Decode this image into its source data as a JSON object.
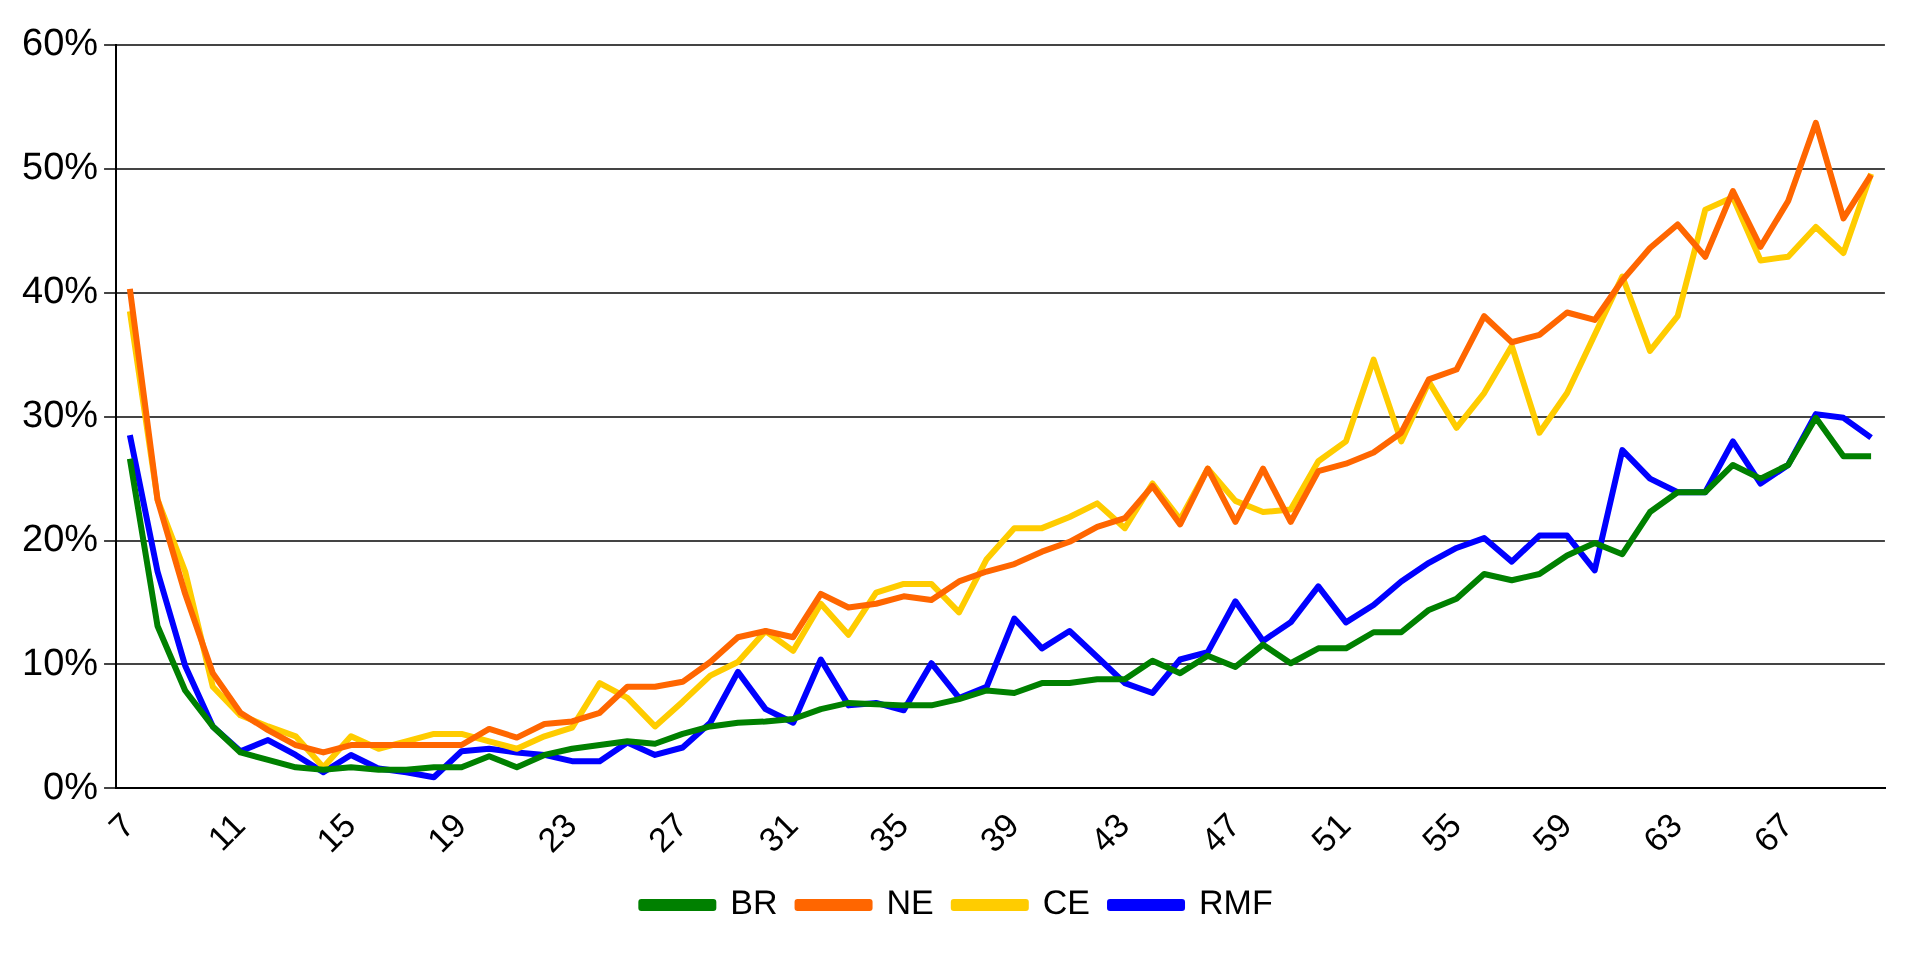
{
  "chart_data": {
    "type": "line",
    "categories": [
      "7",
      null,
      null,
      null,
      "11",
      null,
      null,
      null,
      "15",
      null,
      null,
      null,
      "19",
      null,
      null,
      null,
      "23",
      null,
      null,
      null,
      "27",
      null,
      null,
      null,
      "31",
      null,
      null,
      null,
      "35",
      null,
      null,
      null,
      "39",
      null,
      null,
      null,
      "43",
      null,
      null,
      null,
      "47",
      null,
      null,
      null,
      "51",
      null,
      null,
      null,
      "55",
      null,
      null,
      null,
      "59",
      null,
      null,
      null,
      "63",
      null,
      null,
      null,
      "67",
      null,
      null,
      null
    ],
    "series": [
      {
        "name": "BR",
        "color": "#008000",
        "values": [
          26.6,
          13.1,
          7.9,
          5.0,
          2.9,
          2.3,
          1.7,
          1.5,
          1.7,
          1.5,
          1.5,
          1.7,
          1.7,
          2.6,
          1.7,
          2.7,
          3.2,
          3.5,
          3.8,
          3.6,
          4.4,
          5.0,
          5.3,
          5.4,
          5.6,
          6.4,
          6.9,
          6.8,
          6.7,
          6.7,
          7.2,
          7.9,
          7.7,
          8.5,
          8.5,
          8.8,
          8.8,
          10.3,
          9.3,
          10.7,
          9.8,
          11.6,
          10.1,
          11.3,
          11.3,
          12.6,
          12.6,
          14.4,
          15.3,
          17.3,
          16.8,
          17.3,
          18.8,
          19.8,
          18.9,
          22.3,
          23.9,
          23.9,
          26.1,
          25.0,
          26.1,
          29.9,
          26.8,
          26.8
        ]
      },
      {
        "name": "NE",
        "color": "#ff6600",
        "values": [
          40.3,
          23.3,
          15.7,
          9.3,
          6.1,
          4.7,
          3.5,
          2.9,
          3.5,
          3.5,
          3.5,
          3.5,
          3.5,
          4.8,
          4.1,
          5.2,
          5.4,
          6.1,
          8.2,
          8.2,
          8.6,
          10.2,
          12.2,
          12.7,
          12.2,
          15.7,
          14.6,
          14.9,
          15.5,
          15.2,
          16.7,
          17.5,
          18.1,
          19.1,
          19.9,
          21.1,
          21.8,
          24.4,
          21.3,
          25.8,
          21.5,
          25.8,
          21.5,
          25.6,
          26.2,
          27.1,
          28.7,
          33.0,
          33.8,
          38.1,
          36.0,
          36.6,
          38.4,
          37.8,
          41.0,
          43.6,
          45.5,
          42.9,
          48.2,
          43.7,
          47.4,
          53.7,
          46.0,
          49.5
        ]
      },
      {
        "name": "CE",
        "color": "#ffcc00",
        "values": [
          38.5,
          23.3,
          17.5,
          8.2,
          5.9,
          5.0,
          4.2,
          1.7,
          4.2,
          3.2,
          3.8,
          4.4,
          4.4,
          3.8,
          3.2,
          4.2,
          4.9,
          8.5,
          7.3,
          5.0,
          7.0,
          9.1,
          10.2,
          12.7,
          11.1,
          14.9,
          12.4,
          15.8,
          16.5,
          16.5,
          14.2,
          18.5,
          21.0,
          21.0,
          21.9,
          23.0,
          21.0,
          24.6,
          21.7,
          25.8,
          23.2,
          22.3,
          22.5,
          26.4,
          28.0,
          34.6,
          28.0,
          32.8,
          29.1,
          31.9,
          35.7,
          28.7,
          31.9,
          36.6,
          41.3,
          35.3,
          38.1,
          46.7,
          47.7,
          42.6,
          42.9,
          45.3,
          43.2,
          49.6
        ]
      },
      {
        "name": "RMF",
        "color": "#0000ff",
        "values": [
          28.5,
          17.5,
          9.9,
          5.0,
          3.0,
          3.9,
          2.7,
          1.3,
          2.7,
          1.6,
          1.3,
          0.9,
          3.0,
          3.2,
          2.9,
          2.7,
          2.2,
          2.2,
          3.7,
          2.7,
          3.3,
          5.3,
          9.4,
          6.4,
          5.3,
          10.4,
          6.7,
          6.9,
          6.3,
          10.1,
          7.3,
          8.2,
          13.7,
          11.3,
          12.7,
          10.6,
          8.5,
          7.7,
          10.4,
          11.0,
          15.1,
          11.9,
          13.4,
          16.3,
          13.4,
          14.8,
          16.7,
          18.2,
          19.4,
          20.2,
          18.3,
          20.4,
          20.4,
          17.6,
          27.3,
          25.0,
          23.9,
          23.9,
          28.0,
          24.6,
          26.1,
          30.2,
          29.9,
          28.3
        ]
      }
    ],
    "ylim": [
      0,
      60
    ],
    "yticks": [
      {
        "value": 0,
        "label": "0%"
      },
      {
        "value": 10,
        "label": "10%"
      },
      {
        "value": 20,
        "label": "20%"
      },
      {
        "value": 30,
        "label": "30%"
      },
      {
        "value": 40,
        "label": "40%"
      },
      {
        "value": 50,
        "label": "50%"
      },
      {
        "value": 60,
        "label": "60%"
      }
    ],
    "grid": "y",
    "legend": "bottom",
    "marker": "none",
    "line_style": "solid"
  }
}
